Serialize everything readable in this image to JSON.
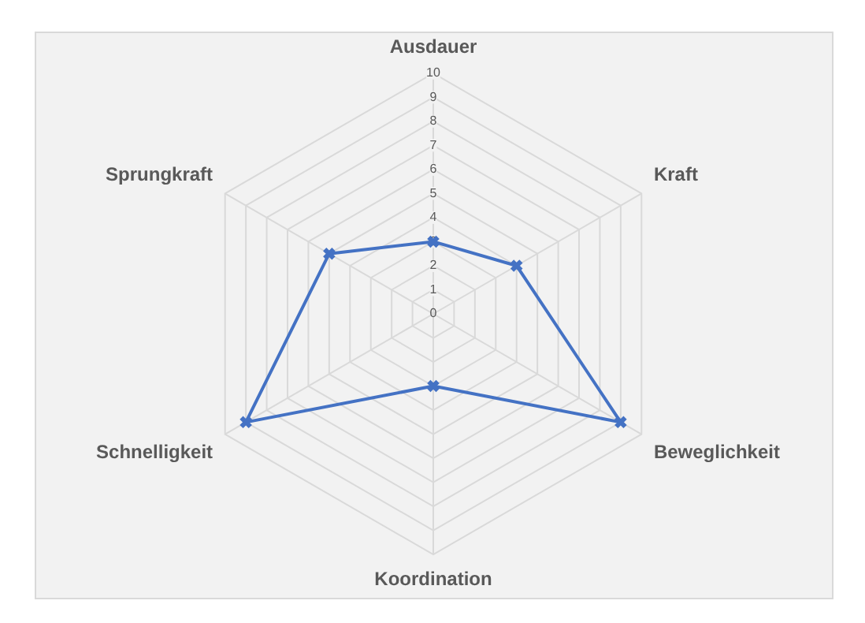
{
  "chart_data": {
    "type": "radar",
    "categories": [
      "Ausdauer",
      "Kraft",
      "Beweglichkeit",
      "Koordination",
      "Schnelligkeit",
      "Sprungkraft"
    ],
    "series": [
      {
        "color": "#4472c4",
        "values": [
          3,
          4,
          9,
          3,
          9,
          5
        ]
      }
    ],
    "ylim": [
      0,
      10
    ],
    "yticks": [
      0,
      1,
      2,
      3,
      4,
      5,
      6,
      7,
      8,
      9,
      10
    ],
    "grid": true,
    "legend": false,
    "marker": "cross",
    "line_style": "solid"
  }
}
